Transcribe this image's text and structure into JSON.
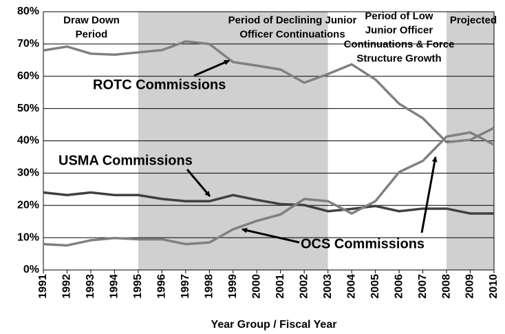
{
  "chart_data": {
    "type": "line",
    "x_label": "Year Group / Fiscal Year",
    "categories": [
      "1991",
      "1992",
      "1993",
      "1994",
      "1995",
      "1996",
      "1997",
      "1998",
      "1999",
      "2000",
      "2001",
      "2002",
      "2003",
      "2004",
      "2005",
      "2006",
      "2007",
      "2008",
      "2009",
      "2010"
    ],
    "series": [
      {
        "name": "ROTC Commissions",
        "color": "#808080",
        "values": [
          68,
          69.2,
          67,
          66.7,
          67.4,
          68.1,
          70.8,
          70,
          64.4,
          63.3,
          62.1,
          58,
          60.7,
          63.7,
          59,
          51.5,
          47,
          39.6,
          40.3,
          44
        ]
      },
      {
        "name": "USMA Commissions",
        "color": "#404040",
        "values": [
          24,
          23.2,
          24,
          23.2,
          23.2,
          22,
          21.3,
          21.3,
          23.2,
          21.7,
          20.4,
          20.1,
          18.2,
          18.9,
          19.8,
          18.2,
          19,
          19,
          17.5,
          17.5
        ]
      },
      {
        "name": "OCS Commissions",
        "color": "#808080",
        "values": [
          8,
          7.6,
          9.2,
          9.9,
          9.5,
          9.5,
          8,
          8.5,
          12.6,
          15.2,
          17.2,
          22,
          21.3,
          17.5,
          21.3,
          30.3,
          33.8,
          41.3,
          42.6,
          38.8
        ]
      }
    ],
    "ylim": [
      0,
      80
    ],
    "yticks": [
      {
        "value": 0,
        "label": "0%"
      },
      {
        "value": 10,
        "label": "10%"
      },
      {
        "value": 20,
        "label": "20%"
      },
      {
        "value": 30,
        "label": "30%"
      },
      {
        "value": 40,
        "label": "40%"
      },
      {
        "value": 50,
        "label": "50%"
      },
      {
        "value": 60,
        "label": "60%"
      },
      {
        "value": 70,
        "label": "70%"
      },
      {
        "value": 80,
        "label": "80%"
      }
    ],
    "grid": true,
    "bands": [
      {
        "start": "1995",
        "end": "2003",
        "color": "#d0d0d0"
      },
      {
        "start": "2008",
        "end": "2010",
        "color": "#d0d0d0"
      }
    ],
    "annotations": [
      {
        "lines": [
          "Draw Down",
          "Period"
        ]
      },
      {
        "lines": [
          "Period of Declining Junior",
          "Officer Continuations"
        ]
      },
      {
        "lines": [
          "Period of Low",
          "Junior Officer",
          "Continuations & Force",
          "Structure Growth"
        ]
      },
      {
        "lines": [
          "Projected"
        ]
      }
    ]
  }
}
